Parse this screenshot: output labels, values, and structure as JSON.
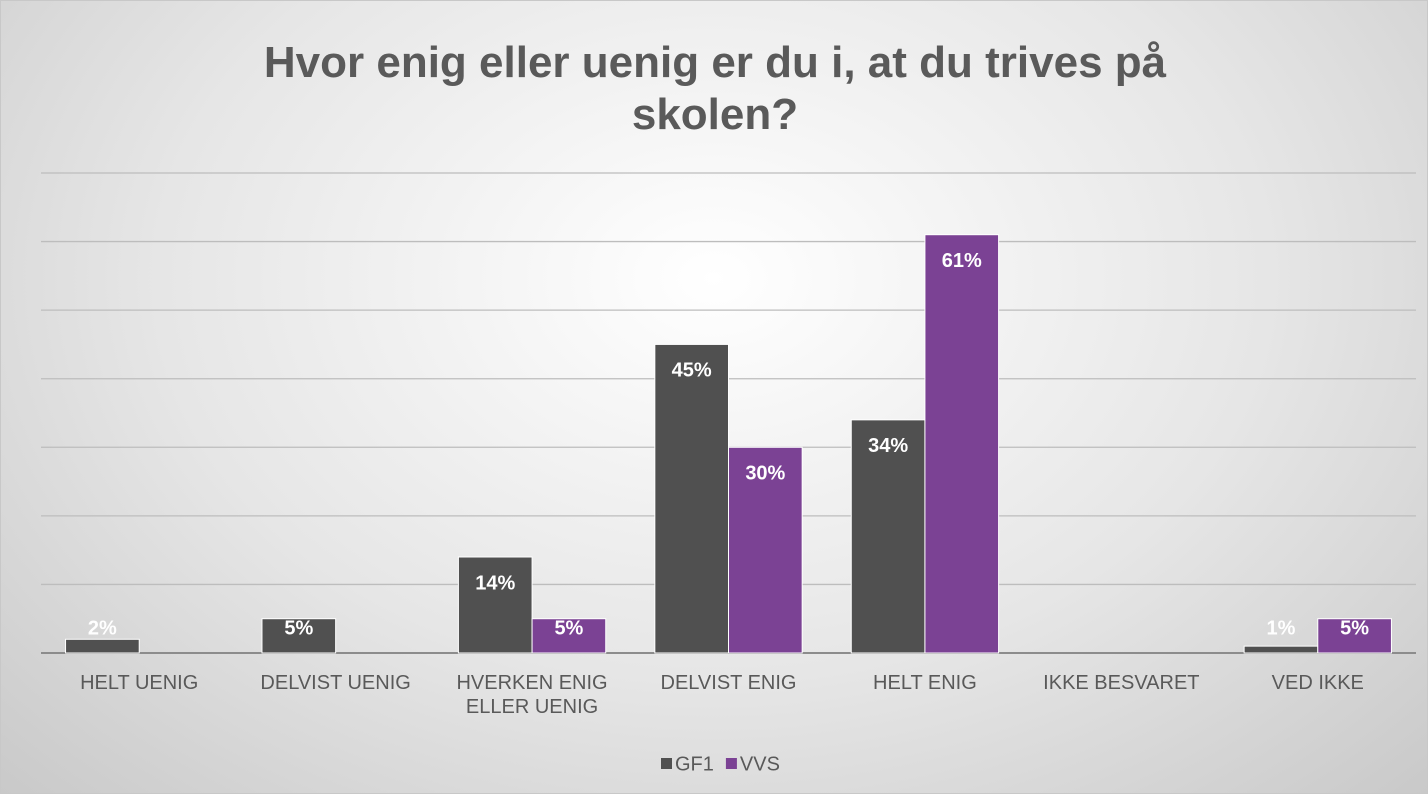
{
  "chart_data": {
    "type": "bar",
    "title": "Hvor enig eller uenig er du i, at du trives på skolen?",
    "categories": [
      "HELT UENIG",
      "DELVIST UENIG",
      "HVERKEN ENIG ELLER UENIG",
      "DELVIST ENIG",
      "HELT ENIG",
      "IKKE BESVARET",
      "VED IKKE"
    ],
    "series": [
      {
        "name": "GF1",
        "color": "#505050",
        "values": [
          2,
          5,
          14,
          45,
          34,
          null,
          1
        ],
        "value_labels": [
          "2%",
          "5%",
          "14%",
          "45%",
          "34%",
          null,
          "1%"
        ]
      },
      {
        "name": "VVS",
        "color": "#7b4294",
        "values": [
          null,
          null,
          5,
          30,
          61,
          null,
          5
        ],
        "value_labels": [
          null,
          null,
          "5%",
          "30%",
          "61%",
          null,
          "5%"
        ]
      }
    ],
    "ylim": [
      0,
      70
    ],
    "yticks": [
      0,
      10,
      20,
      30,
      40,
      50,
      60,
      70
    ],
    "grid": true,
    "legend": "bottom"
  }
}
